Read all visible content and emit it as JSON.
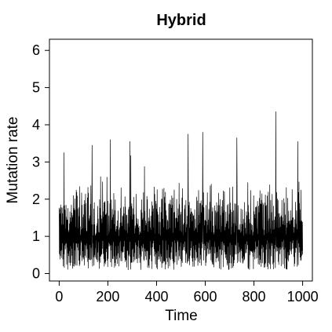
{
  "chart_data": {
    "type": "line",
    "title": "Hybrid",
    "xlabel": "Time",
    "ylabel": "Mutation rate",
    "xlim": [
      -40,
      1040
    ],
    "ylim": [
      -0.2,
      6.3
    ],
    "xticks": [
      0,
      200,
      400,
      600,
      800,
      1000
    ],
    "xtick_labels": [
      "0",
      "200",
      "400",
      "600",
      "800",
      "1000"
    ],
    "yticks": [
      0,
      1,
      2,
      3,
      4,
      5,
      6
    ],
    "ytick_labels": [
      "0",
      "1",
      "2",
      "3",
      "4",
      "5",
      "6"
    ],
    "grid": false,
    "legend": "none",
    "line_color": "#000000",
    "series": [
      {
        "n_points": 1000,
        "x_range": [
          0,
          1000
        ],
        "typical_range": [
          0.1,
          2.5
        ],
        "mean": 1.0,
        "max": 4.35,
        "peaks": [
          {
            "x": 20,
            "y": 3.25
          },
          {
            "x": 135,
            "y": 3.45
          },
          {
            "x": 210,
            "y": 3.6
          },
          {
            "x": 290,
            "y": 3.55
          },
          {
            "x": 530,
            "y": 3.75
          },
          {
            "x": 590,
            "y": 3.8
          },
          {
            "x": 730,
            "y": 3.65
          },
          {
            "x": 890,
            "y": 4.35
          },
          {
            "x": 980,
            "y": 3.55
          }
        ]
      }
    ]
  }
}
